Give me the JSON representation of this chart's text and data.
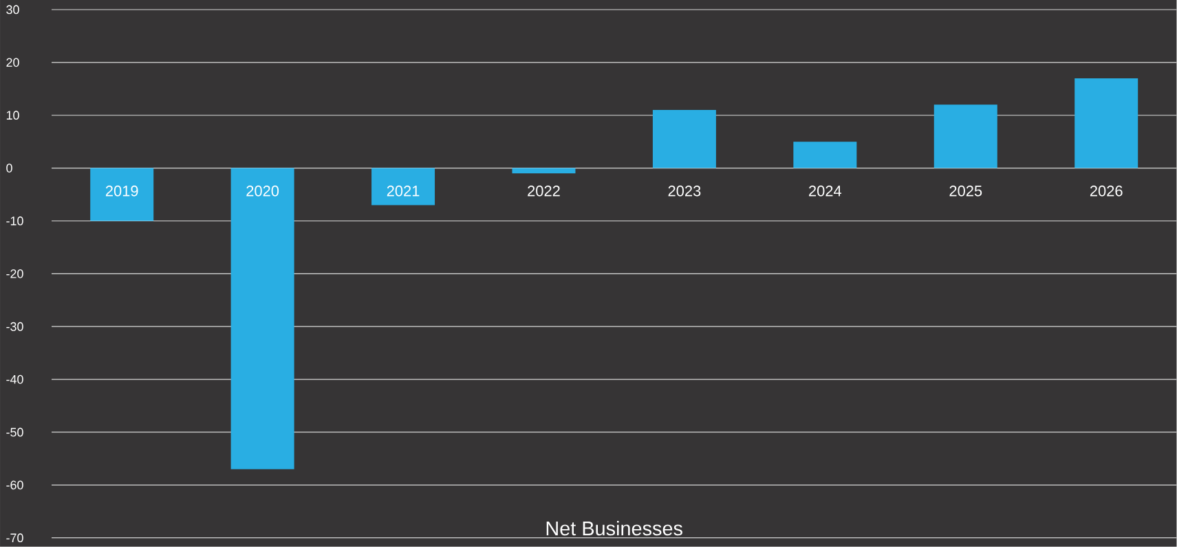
{
  "chart_data": {
    "type": "bar",
    "xlabel": "Net Businesses",
    "categories": [
      "2019",
      "2020",
      "2021",
      "2022",
      "2023",
      "2024",
      "2025",
      "2026"
    ],
    "values": [
      -10,
      -57,
      -7,
      -1,
      11,
      5,
      12,
      17
    ],
    "color": "#29aee3",
    "ylim": [
      -70,
      30
    ],
    "yticks": [
      -70,
      -60,
      -50,
      -40,
      -30,
      -20,
      -10,
      0,
      10,
      20,
      30
    ],
    "grid": "y"
  }
}
